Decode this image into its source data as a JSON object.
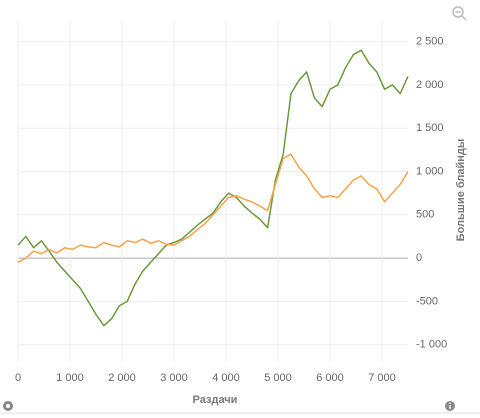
{
  "chart_data": {
    "type": "line",
    "x_label": "Раздачи",
    "y_label": "Большие блайнды",
    "x": [
      0,
      150,
      300,
      450,
      600,
      750,
      900,
      1050,
      1200,
      1350,
      1500,
      1650,
      1800,
      1950,
      2100,
      2250,
      2400,
      2550,
      2700,
      2850,
      3000,
      3150,
      3300,
      3450,
      3600,
      3750,
      3900,
      4050,
      4200,
      4350,
      4500,
      4650,
      4800,
      4950,
      5100,
      5250,
      5400,
      5550,
      5700,
      5850,
      6000,
      6150,
      6300,
      6450,
      6600,
      6750,
      6900,
      7050,
      7200,
      7350,
      7500
    ],
    "series": [
      {
        "color": "#6a9a3a",
        "values": [
          150,
          250,
          120,
          200,
          80,
          -50,
          -150,
          -250,
          -350,
          -500,
          -650,
          -780,
          -700,
          -550,
          -500,
          -300,
          -150,
          -50,
          50,
          150,
          180,
          220,
          300,
          380,
          450,
          520,
          650,
          750,
          700,
          600,
          520,
          450,
          350,
          900,
          1200,
          1900,
          2050,
          2150,
          1850,
          1750,
          1950,
          2000,
          2200,
          2350,
          2400,
          2250,
          2150,
          1950,
          2000,
          1900,
          2100
        ]
      },
      {
        "color": "#f5a348",
        "values": [
          -50,
          0,
          80,
          50,
          100,
          60,
          120,
          100,
          150,
          130,
          120,
          180,
          150,
          130,
          200,
          180,
          220,
          170,
          200,
          160,
          150,
          200,
          250,
          330,
          400,
          500,
          600,
          700,
          720,
          680,
          650,
          600,
          550,
          850,
          1150,
          1200,
          1050,
          950,
          800,
          700,
          720,
          700,
          800,
          900,
          950,
          850,
          800,
          650,
          750,
          850,
          1000
        ]
      }
    ],
    "xlim": [
      0,
      7500
    ],
    "xticks": [
      0,
      {
        "value": 1000,
        "label": "1 000"
      },
      {
        "value": 2000,
        "label": "2 000"
      },
      {
        "value": 3000,
        "label": "3 000"
      },
      {
        "value": 4000,
        "label": "4 000"
      },
      {
        "value": 5000,
        "label": "5 000"
      },
      {
        "value": 6000,
        "label": "6 000"
      },
      {
        "value": 7000,
        "label": "7 000"
      }
    ],
    "ylim": [
      -1200,
      2750
    ],
    "yticks": [
      {
        "value": -1000,
        "label": "-1 000"
      },
      -500,
      0,
      500,
      {
        "value": 1000,
        "label": "1 000"
      },
      {
        "value": 1500,
        "label": "1 500"
      },
      {
        "value": 2000,
        "label": "2 000"
      },
      {
        "value": 2500,
        "label": "2 500"
      }
    ],
    "grid": true
  }
}
